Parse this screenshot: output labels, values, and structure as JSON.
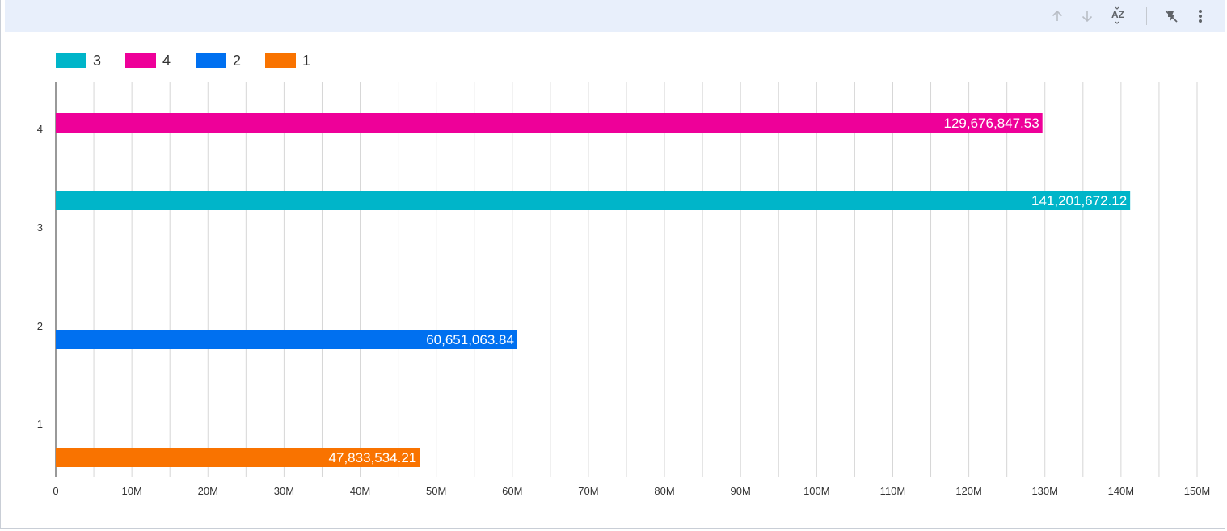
{
  "toolbar": {
    "icons": [
      "arrow-up-icon",
      "arrow-down-icon",
      "sort-az-icon",
      "drill-off-icon",
      "more-vert-icon"
    ],
    "sort_label": "AZ"
  },
  "colors": {
    "series_3": "#00b5c9",
    "series_4": "#ee0099",
    "series_2": "#0070f0",
    "series_1": "#f97300",
    "grid": "#d6d6d6",
    "toolbar_bg": "#e8effb"
  },
  "chart_data": {
    "type": "bar",
    "orientation": "horizontal",
    "legend": [
      {
        "label": "3",
        "color": "#00b5c9"
      },
      {
        "label": "4",
        "color": "#ee0099"
      },
      {
        "label": "2",
        "color": "#0070f0"
      },
      {
        "label": "1",
        "color": "#f97300"
      }
    ],
    "categories": [
      "4",
      "3",
      "2",
      "1"
    ],
    "series": [
      {
        "name": "4",
        "category": "4",
        "value": 129676847.53,
        "label": "129,676,847.53",
        "color": "#ee0099"
      },
      {
        "name": "3",
        "category": "3",
        "value": 141201672.12,
        "label": "141,201,672.12",
        "color": "#00b5c9"
      },
      {
        "name": "2",
        "category": "2",
        "value": 60651063.84,
        "label": "60,651,063.84",
        "color": "#0070f0"
      },
      {
        "name": "1",
        "category": "1",
        "value": 47833534.21,
        "label": "47,833,534.21",
        "color": "#f97300"
      }
    ],
    "xlim": [
      0,
      150000000
    ],
    "x_ticks": [
      {
        "value": 0,
        "label": "0"
      },
      {
        "value": 10000000,
        "label": "10M"
      },
      {
        "value": 20000000,
        "label": "20M"
      },
      {
        "value": 30000000,
        "label": "30M"
      },
      {
        "value": 40000000,
        "label": "40M"
      },
      {
        "value": 50000000,
        "label": "50M"
      },
      {
        "value": 60000000,
        "label": "60M"
      },
      {
        "value": 70000000,
        "label": "70M"
      },
      {
        "value": 80000000,
        "label": "80M"
      },
      {
        "value": 90000000,
        "label": "90M"
      },
      {
        "value": 100000000,
        "label": "100M"
      },
      {
        "value": 110000000,
        "label": "110M"
      },
      {
        "value": 120000000,
        "label": "120M"
      },
      {
        "value": 130000000,
        "label": "130M"
      },
      {
        "value": 140000000,
        "label": "140M"
      },
      {
        "value": 150000000,
        "label": "150M"
      }
    ],
    "grid": true,
    "minor_gridlines": true,
    "legend_position": "top-left",
    "xlabel": "",
    "ylabel": "",
    "title": ""
  }
}
